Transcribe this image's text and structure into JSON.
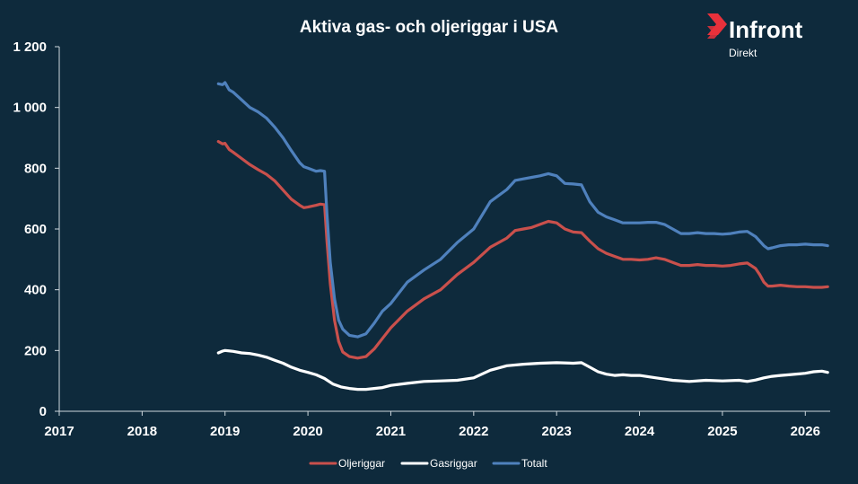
{
  "brand": {
    "name": "Infront",
    "subtitle": "Direkt",
    "logo_color": "#e8313b"
  },
  "chart_data": {
    "type": "line",
    "title": "Aktiva gas- och oljeriggar i USA",
    "xlabel": "",
    "ylabel": "",
    "x_ticks": [
      "2017",
      "2018",
      "2019",
      "2020",
      "2021",
      "2022",
      "2023",
      "2024",
      "2025",
      "2026"
    ],
    "xlim": [
      2017.0,
      2026.3
    ],
    "y_ticks": [
      "0",
      "200",
      "400",
      "600",
      "800",
      "1 000",
      "1 200"
    ],
    "ylim": [
      0,
      1200
    ],
    "grid": false,
    "legend_position": "bottom",
    "series": [
      {
        "name": "Oljeriggar",
        "color": "#c9504c",
        "x": [
          2018.92,
          2018.97,
          2019.0,
          2019.05,
          2019.1,
          2019.2,
          2019.3,
          2019.4,
          2019.5,
          2019.6,
          2019.7,
          2019.8,
          2019.9,
          2019.95,
          2020.0,
          2020.05,
          2020.1,
          2020.15,
          2020.2,
          2020.23,
          2020.27,
          2020.32,
          2020.37,
          2020.42,
          2020.5,
          2020.6,
          2020.7,
          2020.8,
          2020.9,
          2021.0,
          2021.2,
          2021.4,
          2021.6,
          2021.8,
          2022.0,
          2022.2,
          2022.4,
          2022.5,
          2022.6,
          2022.7,
          2022.8,
          2022.9,
          2023.0,
          2023.1,
          2023.2,
          2023.3,
          2023.4,
          2023.5,
          2023.6,
          2023.7,
          2023.8,
          2023.9,
          2024.0,
          2024.1,
          2024.2,
          2024.3,
          2024.4,
          2024.5,
          2024.6,
          2024.7,
          2024.8,
          2024.9,
          2025.0,
          2025.1,
          2025.2,
          2025.3,
          2025.4,
          2025.45,
          2025.5,
          2025.55,
          2025.6,
          2025.7,
          2025.8,
          2025.9,
          2026.0,
          2026.1,
          2026.2,
          2026.27
        ],
        "values": [
          888,
          880,
          882,
          862,
          852,
          832,
          812,
          795,
          780,
          758,
          728,
          698,
          678,
          670,
          672,
          675,
          678,
          682,
          680,
          560,
          420,
          300,
          230,
          195,
          180,
          175,
          180,
          205,
          240,
          275,
          330,
          370,
          400,
          450,
          490,
          540,
          570,
          595,
          600,
          605,
          615,
          625,
          620,
          600,
          590,
          588,
          560,
          535,
          520,
          510,
          500,
          500,
          498,
          500,
          505,
          500,
          490,
          480,
          480,
          483,
          480,
          480,
          478,
          480,
          485,
          488,
          470,
          450,
          425,
          412,
          412,
          415,
          412,
          410,
          410,
          408,
          408,
          410
        ]
      },
      {
        "name": "Gasriggar",
        "color": "#ffffff",
        "x": [
          2018.92,
          2018.97,
          2019.0,
          2019.1,
          2019.2,
          2019.3,
          2019.4,
          2019.5,
          2019.6,
          2019.7,
          2019.8,
          2019.9,
          2020.0,
          2020.1,
          2020.2,
          2020.3,
          2020.4,
          2020.5,
          2020.6,
          2020.7,
          2020.8,
          2020.9,
          2021.0,
          2021.2,
          2021.4,
          2021.6,
          2021.8,
          2022.0,
          2022.2,
          2022.4,
          2022.6,
          2022.8,
          2023.0,
          2023.2,
          2023.3,
          2023.4,
          2023.5,
          2023.6,
          2023.7,
          2023.8,
          2023.9,
          2024.0,
          2024.2,
          2024.4,
          2024.6,
          2024.8,
          2025.0,
          2025.2,
          2025.3,
          2025.4,
          2025.5,
          2025.6,
          2025.7,
          2025.8,
          2026.0,
          2026.1,
          2026.2,
          2026.27
        ],
        "values": [
          192,
          198,
          200,
          197,
          192,
          190,
          185,
          178,
          168,
          158,
          145,
          135,
          128,
          120,
          108,
          90,
          80,
          75,
          72,
          72,
          75,
          78,
          85,
          92,
          98,
          100,
          102,
          110,
          135,
          150,
          155,
          158,
          160,
          158,
          160,
          145,
          130,
          122,
          118,
          120,
          118,
          118,
          110,
          102,
          98,
          102,
          100,
          102,
          98,
          103,
          110,
          115,
          118,
          120,
          125,
          130,
          132,
          128
        ]
      },
      {
        "name": "Totalt",
        "color": "#4f81bd",
        "x": [
          2018.92,
          2018.97,
          2019.0,
          2019.05,
          2019.1,
          2019.2,
          2019.3,
          2019.4,
          2019.5,
          2019.6,
          2019.7,
          2019.8,
          2019.9,
          2019.95,
          2020.0,
          2020.05,
          2020.1,
          2020.15,
          2020.2,
          2020.23,
          2020.27,
          2020.32,
          2020.37,
          2020.42,
          2020.5,
          2020.6,
          2020.7,
          2020.8,
          2020.9,
          2021.0,
          2021.2,
          2021.4,
          2021.6,
          2021.8,
          2022.0,
          2022.2,
          2022.4,
          2022.5,
          2022.6,
          2022.7,
          2022.8,
          2022.9,
          2023.0,
          2023.1,
          2023.2,
          2023.3,
          2023.4,
          2023.5,
          2023.6,
          2023.7,
          2023.8,
          2023.9,
          2024.0,
          2024.1,
          2024.2,
          2024.3,
          2024.4,
          2024.5,
          2024.6,
          2024.7,
          2024.8,
          2024.9,
          2025.0,
          2025.1,
          2025.2,
          2025.3,
          2025.4,
          2025.45,
          2025.5,
          2025.55,
          2025.6,
          2025.7,
          2025.8,
          2025.9,
          2026.0,
          2026.1,
          2026.2,
          2026.27
        ],
        "values": [
          1078,
          1075,
          1082,
          1058,
          1050,
          1025,
          1000,
          985,
          965,
          935,
          900,
          858,
          818,
          805,
          800,
          795,
          790,
          792,
          790,
          650,
          490,
          370,
          300,
          270,
          250,
          245,
          255,
          290,
          330,
          355,
          425,
          465,
          500,
          555,
          600,
          690,
          730,
          760,
          765,
          770,
          775,
          782,
          775,
          750,
          748,
          745,
          690,
          655,
          640,
          630,
          620,
          620,
          620,
          622,
          622,
          615,
          600,
          585,
          585,
          588,
          585,
          585,
          583,
          585,
          590,
          592,
          575,
          560,
          545,
          535,
          538,
          545,
          548,
          548,
          550,
          548,
          548,
          545
        ]
      }
    ]
  }
}
